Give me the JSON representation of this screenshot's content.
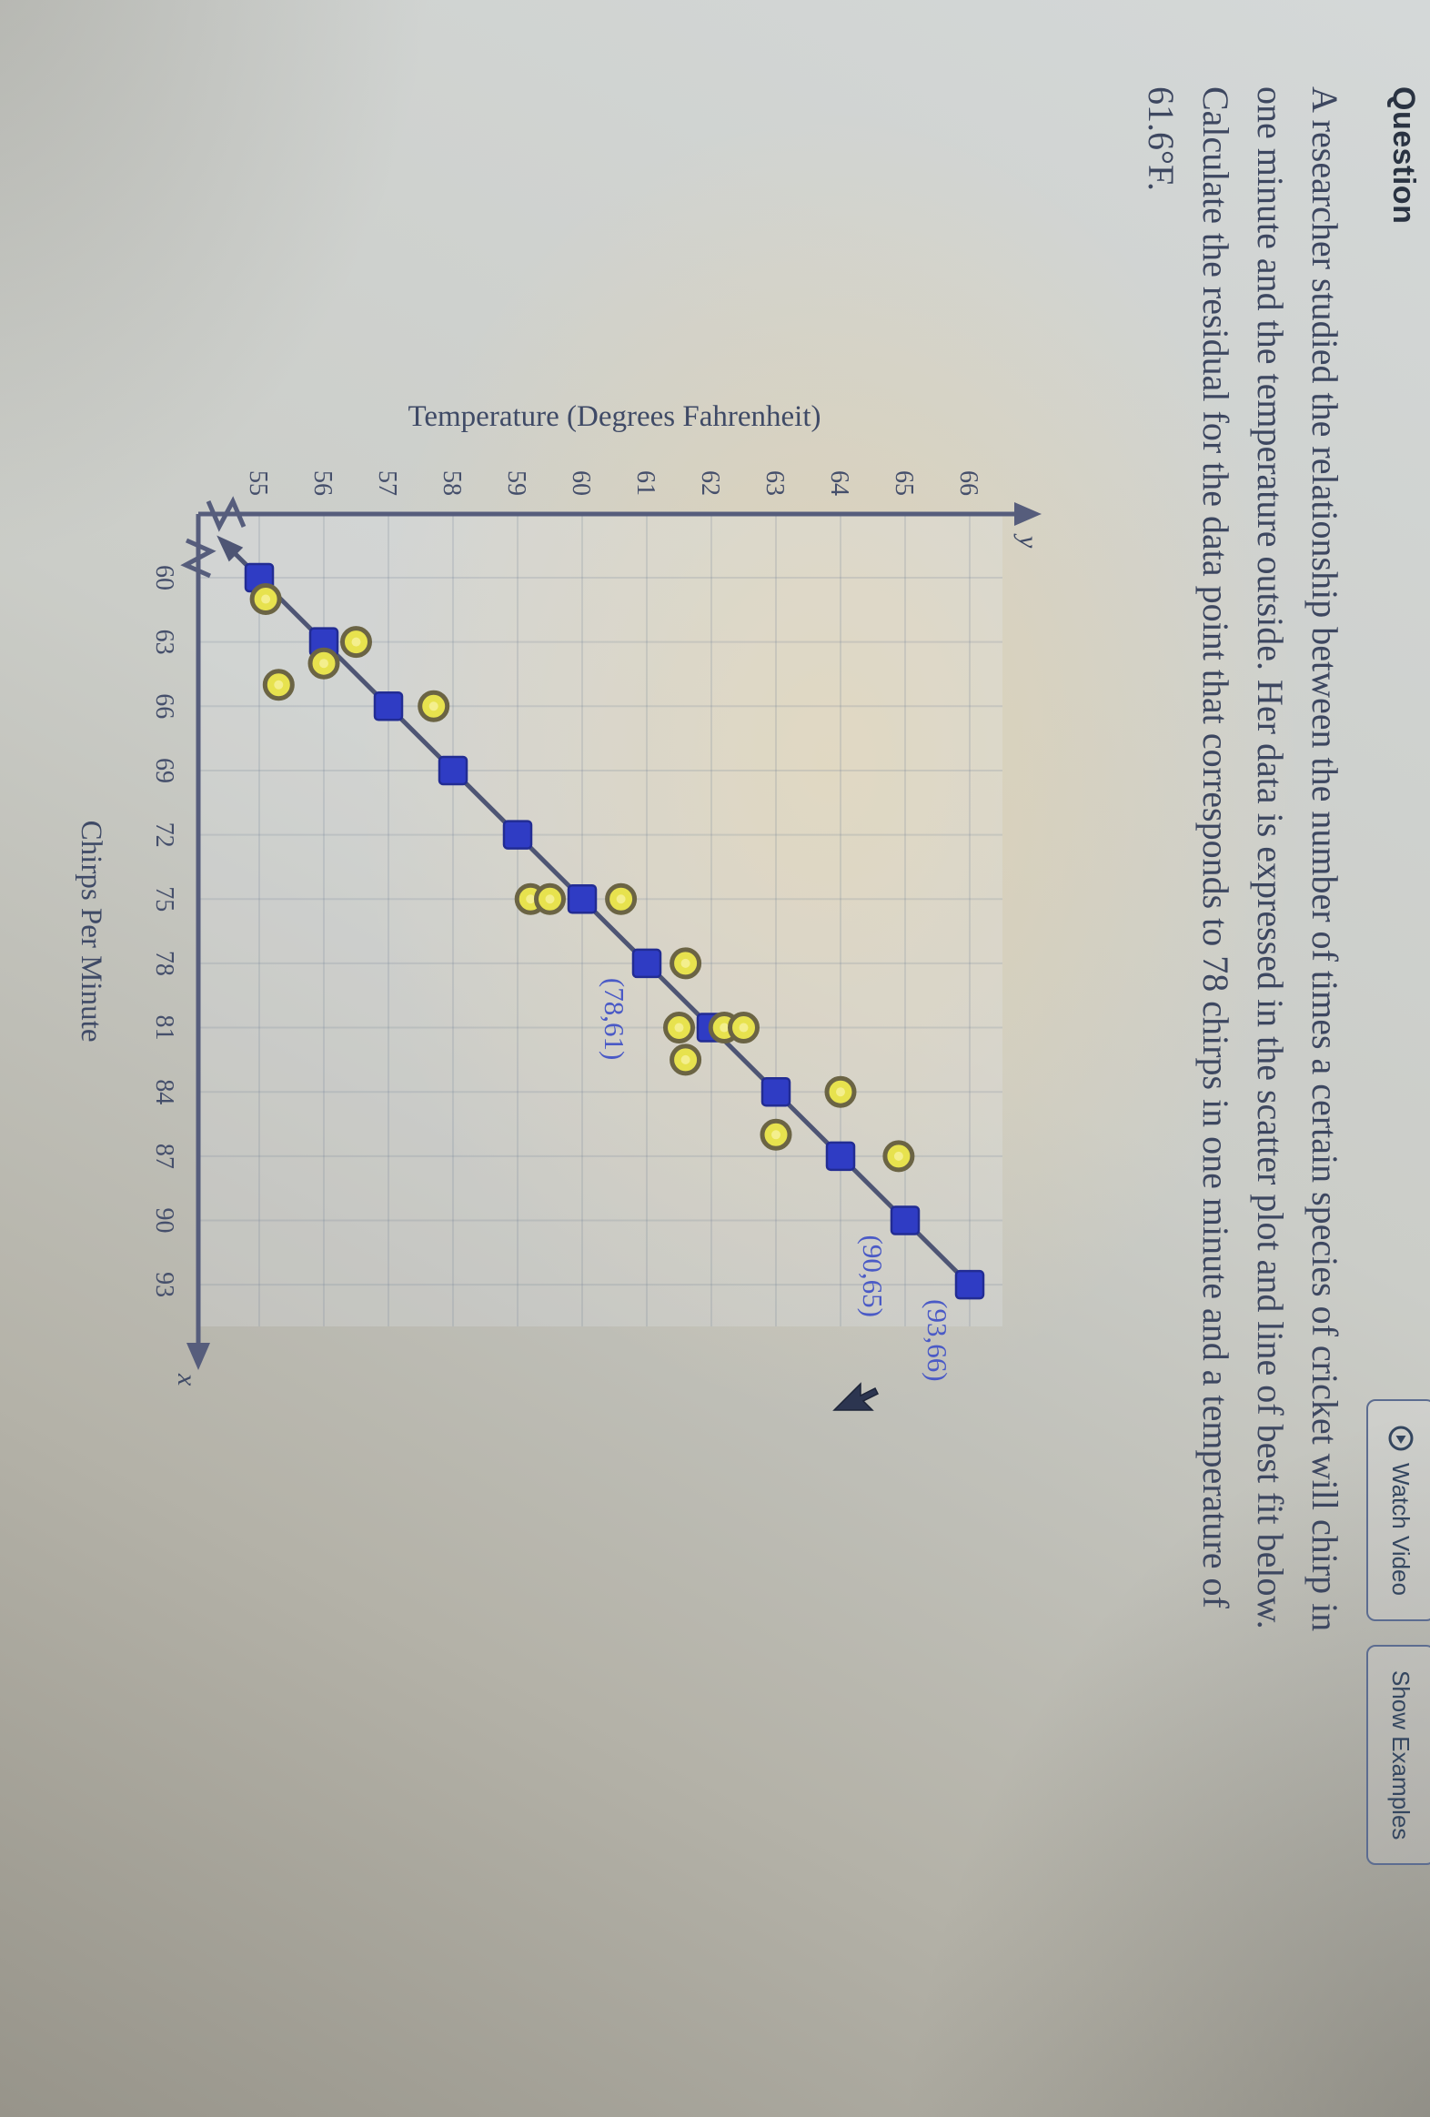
{
  "header": {
    "title": "Question",
    "watch_video_label": "Watch Video",
    "show_examples_label": "Show Examples"
  },
  "question": {
    "lines": [
      "A researcher studied the relationship between the number of times a certain species of cricket will chirp in",
      "one minute and the temperature outside. Her data is expressed in the scatter plot and line of best fit below.",
      "Calculate the residual for the data point that corresponds to 78 chirps in one minute and a temperature of",
      "61.6°F."
    ]
  },
  "chart_data": {
    "type": "scatter",
    "xlabel": "Chirps Per Minute",
    "ylabel": "Temperature (Degrees Fahrenheit)",
    "x_axis_letter": "x",
    "y_axis_letter": "y",
    "x_ticks": [
      60,
      63,
      66,
      69,
      72,
      75,
      78,
      81,
      84,
      87,
      90,
      93
    ],
    "y_ticks": [
      55,
      56,
      57,
      58,
      59,
      60,
      61,
      62,
      63,
      64,
      65,
      66
    ],
    "xlim": [
      57,
      95
    ],
    "ylim": [
      53.5,
      67.5
    ],
    "grid": true,
    "axis_breaks": true,
    "scatter_points": [
      [
        61,
        55.1
      ],
      [
        63,
        56.5
      ],
      [
        64,
        56.0
      ],
      [
        65,
        55.3
      ],
      [
        66,
        57.7
      ],
      [
        75,
        59.2
      ],
      [
        75,
        59.5
      ],
      [
        75,
        60.6
      ],
      [
        78,
        61.6
      ],
      [
        81,
        61.5
      ],
      [
        81,
        62.2
      ],
      [
        81,
        62.5
      ],
      [
        82.5,
        61.6
      ],
      [
        84,
        64.0
      ],
      [
        86,
        63.0
      ],
      [
        87,
        64.9
      ]
    ],
    "best_fit_points": [
      [
        60,
        55
      ],
      [
        63,
        56
      ],
      [
        66,
        57
      ],
      [
        69,
        58
      ],
      [
        72,
        59
      ],
      [
        75,
        60
      ],
      [
        78,
        61
      ],
      [
        81,
        62
      ],
      [
        84,
        63
      ],
      [
        87,
        64
      ],
      [
        90,
        65
      ],
      [
        93,
        66
      ]
    ],
    "best_fit_line": {
      "x1": 60,
      "y1": 55,
      "x2": 93,
      "y2": 66
    },
    "point_labels": [
      {
        "text": "(78,61)",
        "x": 78,
        "y": 61
      },
      {
        "text": "(90,65)",
        "x": 90,
        "y": 65
      },
      {
        "text": "(93,66)",
        "x": 93,
        "y": 66
      }
    ]
  },
  "colors": {
    "axis": "#565d7c",
    "grid": "rgba(116,128,152,0.20)",
    "line": "#4e5574",
    "square_fill": "#2f3cc4",
    "square_stroke": "#222c93",
    "circle_fill": "#e7e24e",
    "circle_ring": "#6b6444",
    "circle_center": "#f4ef8d",
    "tick_text": "#454f6b",
    "title_text": "#3f4a66",
    "label_blue": "#4a5ac6",
    "cursor": "#2c3550"
  }
}
